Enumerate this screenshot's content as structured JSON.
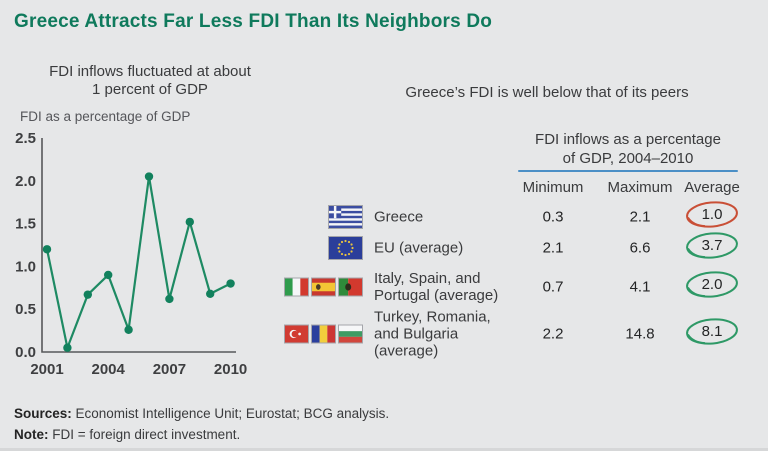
{
  "title": "Greece Attracts Far Less FDI Than Its Neighbors Do",
  "colors": {
    "background": "#e6e7e8",
    "title_green": "#0f7a5c",
    "line_green": "#1e8a63",
    "dot_green": "#12815d",
    "axis_gray": "#57585a",
    "blue_rule": "#4b8fc6",
    "circle_red": "#c94f36",
    "circle_green": "#2e9966"
  },
  "chart_data": {
    "type": "line",
    "title": "FDI inflows fluctuated at about\n1 percent of GDP",
    "ylabel": "FDI as a percentage of GDP",
    "x": [
      2001,
      2002,
      2003,
      2004,
      2005,
      2006,
      2007,
      2008,
      2009,
      2010
    ],
    "values": [
      1.2,
      0.05,
      0.67,
      0.9,
      0.26,
      2.05,
      0.62,
      1.52,
      0.68,
      0.8
    ],
    "ylim": [
      0,
      2.5
    ],
    "y_ticks": [
      0.0,
      0.5,
      1.0,
      1.5,
      2.0,
      2.5
    ],
    "x_ticks": [
      2001,
      2004,
      2007,
      2010
    ],
    "grid": false,
    "legend": "none"
  },
  "right_table": {
    "subtitle": "Greece’s FDI is well below that of its peers",
    "header": "FDI inflows as a percentage\nof GDP, 2004–2010",
    "columns": [
      "Minimum",
      "Maximum",
      "Average"
    ],
    "rows": [
      {
        "label": "Greece",
        "flags": [
          "greece"
        ],
        "min": "0.3",
        "max": "2.1",
        "avg": "1.0",
        "circle": "red"
      },
      {
        "label": "EU (average)",
        "flags": [
          "eu"
        ],
        "min": "2.1",
        "max": "6.6",
        "avg": "3.7",
        "circle": "green"
      },
      {
        "label": "Italy, Spain, and\nPortugal (average)",
        "flags": [
          "italy",
          "spain",
          "portugal"
        ],
        "min": "0.7",
        "max": "4.1",
        "avg": "2.0",
        "circle": "green"
      },
      {
        "label": "Turkey, Romania,\nand Bulgaria (average)",
        "flags": [
          "turkey",
          "romania",
          "bulgaria"
        ],
        "min": "2.2",
        "max": "14.8",
        "avg": "8.1",
        "circle": "green"
      }
    ]
  },
  "footer": {
    "sources_label": "Sources:",
    "sources_text": " Economist Intelligence Unit; Eurostat; BCG analysis.",
    "note_label": "Note:",
    "note_text": " FDI = foreign direct investment."
  }
}
